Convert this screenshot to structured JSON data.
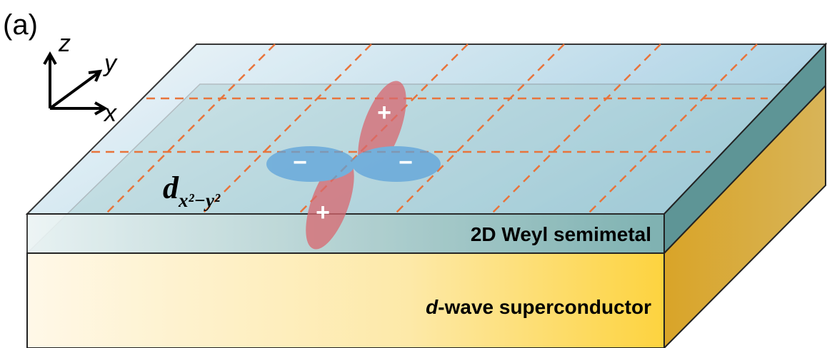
{
  "panel_label": "(a)",
  "axes": {
    "z": "z",
    "y": "y",
    "x": "x"
  },
  "orbital_label": {
    "main": "d",
    "subscript": "x²−y²"
  },
  "orbital_signs": [
    "+",
    "−",
    "−",
    "+"
  ],
  "layers": {
    "top": "2D Weyl semimetal",
    "bottom": {
      "italic": "d",
      "rest": "-wave superconductor"
    }
  }
}
